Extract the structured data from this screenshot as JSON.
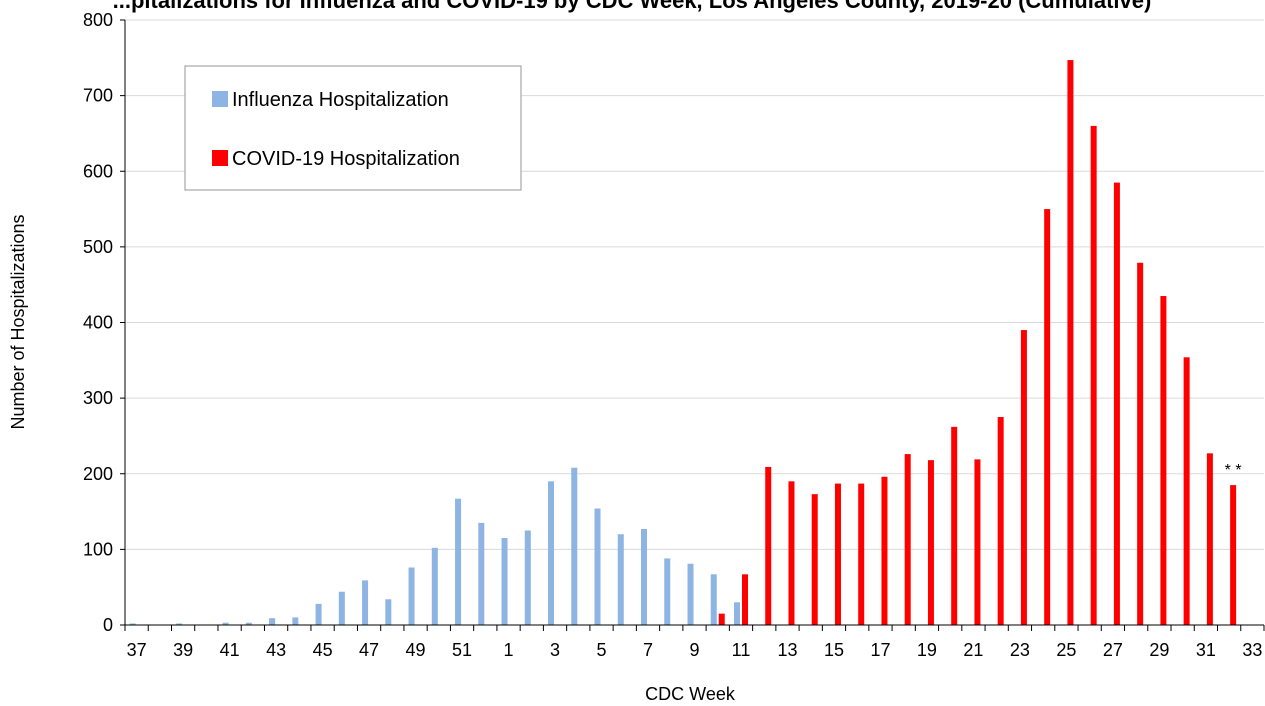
{
  "chart_data": {
    "type": "bar",
    "title": "...pitalizations for Influenza and COVID-19 by CDC Week, Los Angeles County, 2019-20 (Cumulative)",
    "xlabel": "CDC Week",
    "ylabel": "Number of Hospitalizations",
    "ylim": [
      0,
      800
    ],
    "yticks": [
      0,
      100,
      200,
      300,
      400,
      500,
      600,
      700,
      800
    ],
    "grid": true,
    "legend_position": "top-left",
    "categories": [
      "37",
      "38",
      "39",
      "40",
      "41",
      "42",
      "43",
      "44",
      "45",
      "46",
      "47",
      "48",
      "49",
      "50",
      "51",
      "52",
      "1",
      "2",
      "3",
      "4",
      "5",
      "6",
      "7",
      "8",
      "9",
      "10",
      "11",
      "12",
      "13",
      "14",
      "15",
      "16",
      "17",
      "18",
      "19",
      "20",
      "21",
      "22",
      "23",
      "24",
      "25",
      "26",
      "27",
      "28",
      "29",
      "30",
      "31",
      "32",
      "33"
    ],
    "x_tick_labels": [
      "37",
      "39",
      "41",
      "43",
      "45",
      "47",
      "49",
      "51",
      "1",
      "3",
      "5",
      "7",
      "9",
      "11",
      "13",
      "15",
      "17",
      "19",
      "21",
      "23",
      "25",
      "27",
      "29",
      "31",
      "33"
    ],
    "series": [
      {
        "name": "Influenza Hospitalization",
        "color": "#8db4e2",
        "values": [
          2,
          0,
          2,
          0,
          3,
          3,
          9,
          10,
          28,
          44,
          59,
          34,
          76,
          102,
          167,
          135,
          115,
          125,
          190,
          208,
          154,
          120,
          127,
          88,
          81,
          67,
          30,
          null,
          null,
          null,
          null,
          null,
          null,
          null,
          null,
          null,
          null,
          null,
          null,
          null,
          null,
          null,
          null,
          null,
          null,
          null,
          null,
          null,
          null
        ]
      },
      {
        "name": "COVID-19 Hospitalization",
        "color": "#ff0000",
        "values": [
          null,
          null,
          null,
          null,
          null,
          null,
          null,
          null,
          null,
          null,
          null,
          null,
          null,
          null,
          null,
          null,
          null,
          null,
          null,
          null,
          null,
          null,
          null,
          null,
          null,
          15,
          67,
          209,
          190,
          173,
          187,
          187,
          196,
          226,
          218,
          262,
          219,
          275,
          390,
          550,
          747,
          660,
          585,
          479,
          435,
          354,
          227,
          185,
          null
        ]
      }
    ],
    "annotations": [
      {
        "text": "* *",
        "anchor_category": "33"
      }
    ]
  }
}
